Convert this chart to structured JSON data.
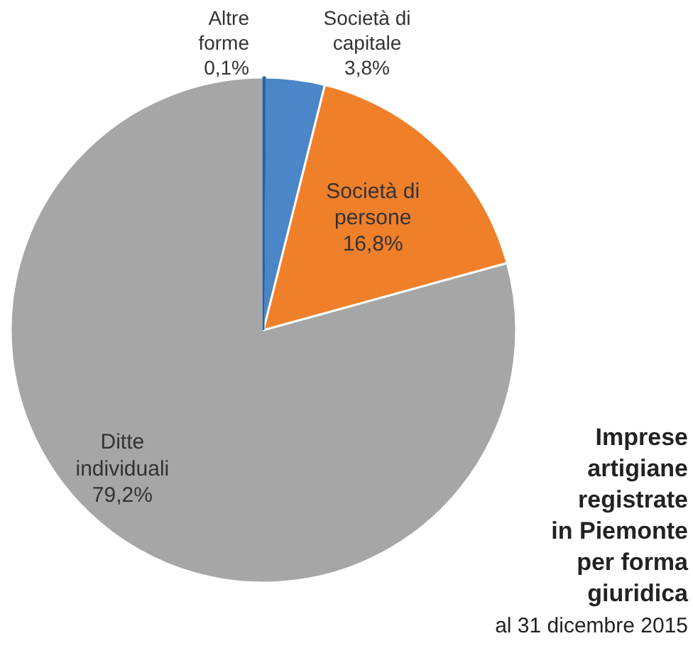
{
  "chart_data": {
    "type": "pie",
    "title": "Imprese artigiane registrate in Piemonte per forma giuridica",
    "subtitle": "al 31 dicembre 2015",
    "categories": [
      "Altre forme",
      "Società di capitale",
      "Società di persone",
      "Ditte individuali"
    ],
    "values": [
      0.1,
      3.8,
      16.8,
      79.2
    ],
    "value_labels": [
      "0,1%",
      "3,8%",
      "16,8%",
      "79,2%"
    ],
    "colors": [
      "#2f5f9e",
      "#4a86c8",
      "#f07f2a",
      "#a6a6a6"
    ]
  }
}
